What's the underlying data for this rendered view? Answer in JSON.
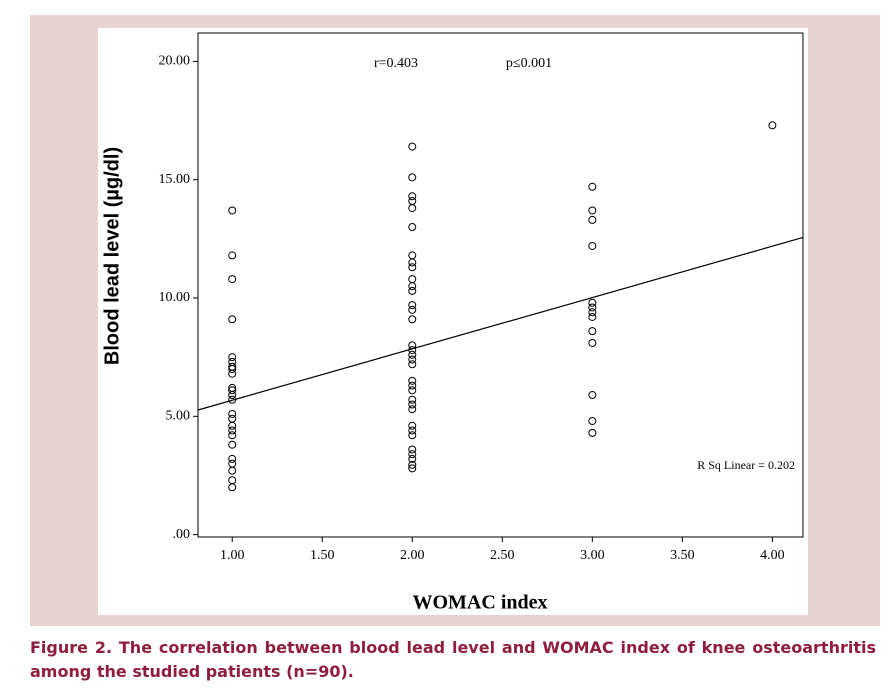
{
  "chart_data": {
    "type": "scatter",
    "x_label": "WOMAC index",
    "y_label": "Blood lead level (µg/dl)",
    "annotations": [
      "r=0.403",
      "p≤0.001",
      "R Sq Linear = 0.202"
    ],
    "x": [
      1,
      1,
      1,
      1,
      1,
      1,
      1,
      1,
      1,
      1,
      1,
      1,
      1,
      1,
      1,
      1,
      1,
      1,
      1,
      1,
      1,
      1,
      1,
      1,
      2,
      2,
      2,
      2,
      2,
      2,
      2,
      2,
      2,
      2,
      2,
      2,
      2,
      2,
      2,
      2,
      2,
      2,
      2,
      2,
      2,
      2,
      2,
      2,
      2,
      2,
      2,
      2,
      2,
      2,
      2,
      2,
      2,
      2,
      3,
      3,
      3,
      3,
      3,
      3,
      3,
      3,
      3,
      3,
      3,
      3,
      3,
      4
    ],
    "values": [
      13.7,
      11.8,
      10.8,
      9.1,
      7.5,
      7.3,
      7.1,
      7.0,
      6.8,
      6.2,
      6.1,
      5.9,
      5.7,
      5.1,
      4.9,
      4.6,
      4.4,
      4.2,
      3.8,
      3.2,
      3.0,
      2.7,
      2.3,
      2.0,
      16.4,
      15.1,
      14.3,
      14.1,
      13.8,
      13.0,
      11.8,
      11.5,
      11.3,
      10.8,
      10.5,
      10.3,
      9.7,
      9.5,
      9.1,
      8.0,
      7.8,
      7.6,
      7.4,
      7.2,
      6.5,
      6.3,
      6.1,
      5.7,
      5.5,
      5.3,
      4.6,
      4.4,
      4.2,
      3.6,
      3.4,
      3.2,
      2.95,
      2.8,
      14.7,
      13.7,
      13.3,
      12.2,
      9.8,
      9.6,
      9.4,
      9.2,
      8.6,
      8.1,
      5.9,
      4.8,
      4.3,
      17.3
    ],
    "color": "#000000",
    "regression": {
      "intercept": 3.51,
      "slope": 2.17
    },
    "xlim": [
      0.81,
      4.17
    ],
    "ylim": [
      -0.1,
      21.2
    ],
    "xticks": [
      {
        "value": 1,
        "label": "1.00"
      },
      {
        "value": 1.5,
        "label": "1.50"
      },
      {
        "value": 2,
        "label": "2.00"
      },
      {
        "value": 2.5,
        "label": "2.50"
      },
      {
        "value": 3,
        "label": "3.00"
      },
      {
        "value": 3.5,
        "label": "3.50"
      },
      {
        "value": 4,
        "label": "4.00"
      }
    ],
    "yticks": [
      {
        "value": 0,
        "label": ".00"
      },
      {
        "value": 5,
        "label": "5.00"
      },
      {
        "value": 10,
        "label": "10.00"
      },
      {
        "value": 15,
        "label": "15.00"
      },
      {
        "value": 20,
        "label": "20.00"
      }
    ],
    "grid": false
  },
  "caption": "Figure 2. The correlation between blood lead level and WOMAC index of knee osteoarthritis among the studied patients (n=90)."
}
